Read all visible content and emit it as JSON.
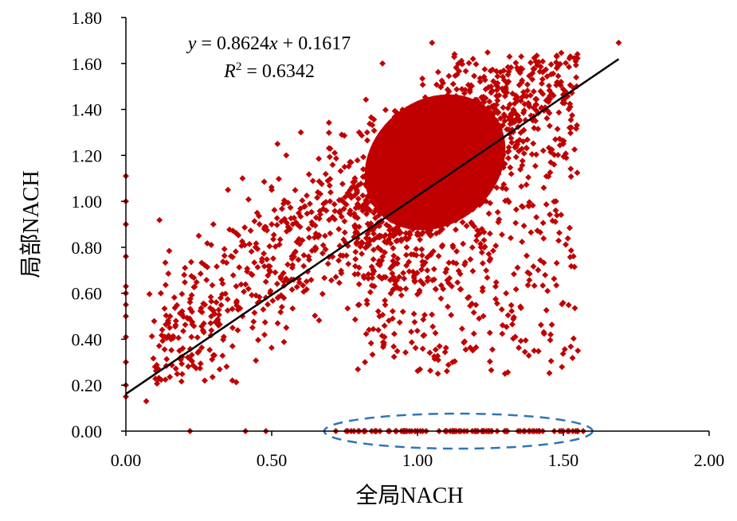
{
  "chart_data": {
    "type": "scatter",
    "xlabel": "全局NACH",
    "ylabel": "局部NACH",
    "xlim": [
      0,
      2
    ],
    "ylim": [
      0,
      1.8
    ],
    "x_ticks": [
      "0.00",
      "0.50",
      "1.00",
      "1.50",
      "2.00"
    ],
    "y_ticks": [
      "0.00",
      "0.20",
      "0.40",
      "0.60",
      "0.80",
      "1.00",
      "1.20",
      "1.40",
      "1.60",
      "1.80"
    ],
    "equation": {
      "line1_prefix": "y",
      "line1_mid": " = 0.8624",
      "line1_var": "x",
      "line1_suffix": " + 0.1617",
      "line2_prefix": "R",
      "line2_sup": "2",
      "line2_suffix": " = 0.6342"
    },
    "trendline": {
      "slope": 0.8624,
      "intercept": 0.1617,
      "x_range": [
        0,
        1.69
      ]
    },
    "marker_color": "#C00000",
    "trendline_color": "#000000",
    "ellipse_color": "#2E75B6",
    "highlight_region": {
      "x_range": [
        0.68,
        1.6
      ],
      "y": 0.0
    },
    "series": [
      {
        "points_sample": [
          [
            0.0,
            1.11
          ],
          [
            0.0,
            1.0
          ],
          [
            0.0,
            0.9
          ],
          [
            0.0,
            0.76
          ],
          [
            0.0,
            0.63
          ],
          [
            0.0,
            0.6
          ],
          [
            0.0,
            0.55
          ],
          [
            0.0,
            0.5
          ],
          [
            0.0,
            0.41
          ],
          [
            0.0,
            0.3
          ],
          [
            0.0,
            0.2
          ],
          [
            0.0,
            0.15
          ],
          [
            0.07,
            0.13
          ],
          [
            0.1,
            0.28
          ],
          [
            0.12,
            0.6
          ],
          [
            0.15,
            0.45
          ],
          [
            0.2,
            0.68
          ],
          [
            0.25,
            0.85
          ],
          [
            0.3,
            0.33
          ],
          [
            0.3,
            0.9
          ],
          [
            0.35,
            1.05
          ],
          [
            0.4,
            0.5
          ],
          [
            0.4,
            1.1
          ],
          [
            0.45,
            0.95
          ],
          [
            0.5,
            1.05
          ],
          [
            0.5,
            0.9
          ],
          [
            0.52,
            1.25
          ],
          [
            0.55,
            1.2
          ],
          [
            0.55,
            0.45
          ],
          [
            0.57,
            0.75
          ],
          [
            0.6,
            1.3
          ],
          [
            0.65,
            0.8
          ],
          [
            0.7,
            1.0
          ],
          [
            0.75,
            1.15
          ],
          [
            0.8,
            1.3
          ],
          [
            0.8,
            0.55
          ],
          [
            0.82,
            0.3
          ],
          [
            0.85,
            0.95
          ],
          [
            0.88,
            1.6
          ],
          [
            0.9,
            1.1
          ],
          [
            0.95,
            0.52
          ],
          [
            1.0,
            1.2
          ],
          [
            1.05,
            1.69
          ],
          [
            1.07,
            0.25
          ],
          [
            1.1,
            1.45
          ],
          [
            1.12,
            0.3
          ],
          [
            1.15,
            1.6
          ],
          [
            1.2,
            1.35
          ],
          [
            1.25,
            0.75
          ],
          [
            1.3,
            0.25
          ],
          [
            1.35,
            1.35
          ],
          [
            1.4,
            0.35
          ],
          [
            1.45,
            1.45
          ],
          [
            1.5,
            1.25
          ],
          [
            1.55,
            0.35
          ],
          [
            1.69,
            1.69
          ],
          [
            0.22,
            0.0
          ],
          [
            0.41,
            0.0
          ],
          [
            0.48,
            0.0
          ],
          [
            0.72,
            0.0
          ],
          [
            0.8,
            0.0
          ],
          [
            0.9,
            0.0
          ],
          [
            1.0,
            0.0
          ],
          [
            1.1,
            0.0
          ],
          [
            1.2,
            0.0
          ],
          [
            1.3,
            0.0
          ],
          [
            1.4,
            0.0
          ],
          [
            1.5,
            0.0
          ],
          [
            1.55,
            0.0
          ]
        ]
      }
    ],
    "grid": false,
    "legend": "none"
  }
}
